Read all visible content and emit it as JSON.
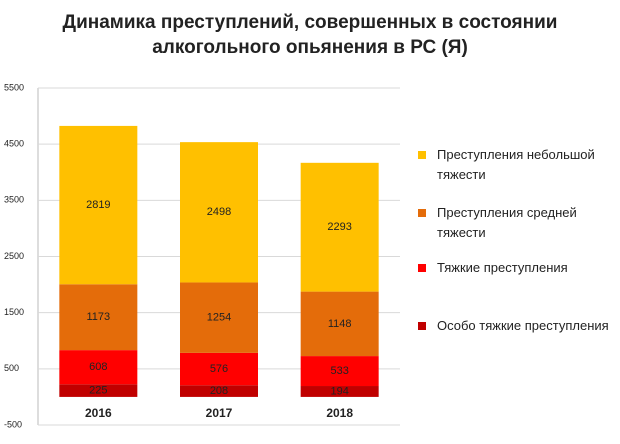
{
  "chart_data": {
    "type": "stacked-bar",
    "title": "Динамика преступлений, совершенных в состоянии алкогольного опьянения в РС (Я)",
    "categories": [
      "2016",
      "2017",
      "2018"
    ],
    "series": [
      {
        "name": "Особо тяжкие преступления",
        "color": "#c00000",
        "values": [
          225,
          208,
          194
        ]
      },
      {
        "name": "Тяжкие преступления",
        "color": "#ff0000",
        "values": [
          608,
          576,
          533
        ]
      },
      {
        "name": "Преступления средней тяжести",
        "color": "#e46c0a",
        "values": [
          1173,
          1254,
          1148
        ]
      },
      {
        "name": "Преступления небольшой тяжести",
        "color": "#ffc000",
        "values": [
          2819,
          2498,
          2293
        ]
      }
    ],
    "ylim": [
      -500,
      5500
    ],
    "yticks": [
      -500,
      500,
      1500,
      2500,
      3500,
      4500,
      5500
    ],
    "grid": true,
    "legend": "right"
  }
}
